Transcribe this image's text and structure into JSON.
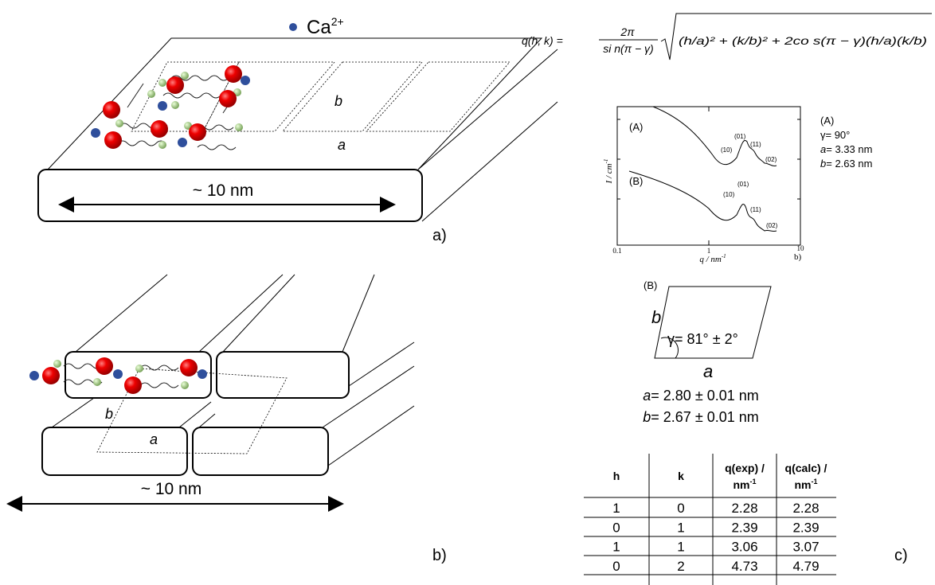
{
  "legend": {
    "ion": "Ca",
    "charge": "2+"
  },
  "formula": {
    "lhs": "q(h, k) =",
    "numerator": "2π",
    "denominator": "si n(π − γ)",
    "radicand": "(h/a)² + (k/b)² + 2co s(π − γ)(h/a)(k/b)"
  },
  "panel_a": {
    "width_label": "~ 10 nm",
    "b": "b",
    "a": "a",
    "label": "a)"
  },
  "panel_b": {
    "width_label": "~ 10 nm",
    "b": "b",
    "a": "a",
    "label": "b)"
  },
  "saxs": {
    "curve_a": "(A)",
    "curve_b": "(B)",
    "peaks_a": [
      "(10)",
      "(01)",
      "(11)",
      "(02)"
    ],
    "peaks_b": [
      "(10)",
      "(01)",
      "(11)",
      "(02)"
    ],
    "y_label": "I / cm",
    "y_exp": "-1",
    "x_label": "q / nm",
    "x_exp": "-1",
    "xticks": [
      "0.1",
      "1",
      "10"
    ],
    "label": "b)"
  },
  "params_a": {
    "title": "(A)",
    "gamma": "γ= 90°",
    "a_name": "a",
    "a_value": "= 3.33 nm",
    "b_name": "b",
    "b_value": "= 2.63 nm"
  },
  "cell_b": {
    "title": "(B)",
    "b": "b",
    "a": "a",
    "gamma": "γ= 81° ± 2°",
    "a_name": "a",
    "a_value": "= 2.80 ± 0.01 nm",
    "b_name": "b",
    "b_value": "= 2.67 ± 0.01 nm"
  },
  "table": {
    "headers": [
      {
        "text": "h"
      },
      {
        "text": "k"
      },
      {
        "text": "q(exp) /",
        "unit": "nm",
        "exp": "-1"
      },
      {
        "text": "q(calc) /",
        "unit": "nm",
        "exp": "-1"
      }
    ],
    "rows": [
      [
        "1",
        "0",
        "2.28",
        "2.28"
      ],
      [
        "0",
        "1",
        "2.39",
        "2.39"
      ],
      [
        "1",
        "1",
        "3.06",
        "3.07"
      ],
      [
        "0",
        "2",
        "4.73",
        "4.79"
      ]
    ],
    "label": "c)"
  }
}
